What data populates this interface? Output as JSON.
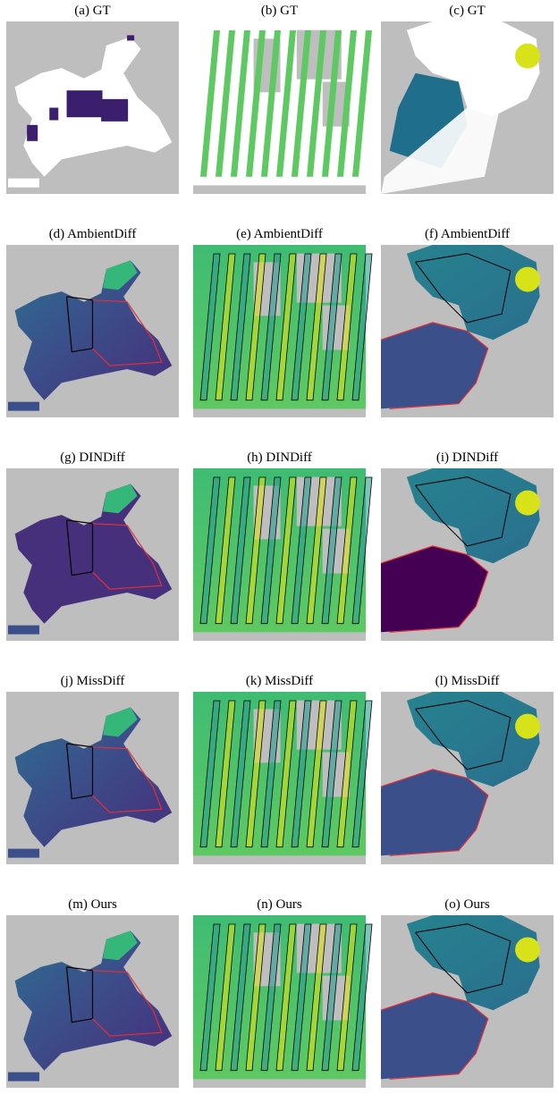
{
  "panels": [
    {
      "caption": "(a) GT"
    },
    {
      "caption": "(b) GT"
    },
    {
      "caption": "(c) GT"
    },
    {
      "caption": "(d) AmbientDiff"
    },
    {
      "caption": "(e) AmbientDiff"
    },
    {
      "caption": "(f) AmbientDiff"
    },
    {
      "caption": "(g) DINDiff"
    },
    {
      "caption": "(h) DINDiff"
    },
    {
      "caption": "(i) DINDiff"
    },
    {
      "caption": "(j) MissDiff"
    },
    {
      "caption": "(k) MissDiff"
    },
    {
      "caption": "(l) MissDiff"
    },
    {
      "caption": "(m) Ours"
    },
    {
      "caption": "(n) Ours"
    },
    {
      "caption": "(o) Ours"
    }
  ]
}
